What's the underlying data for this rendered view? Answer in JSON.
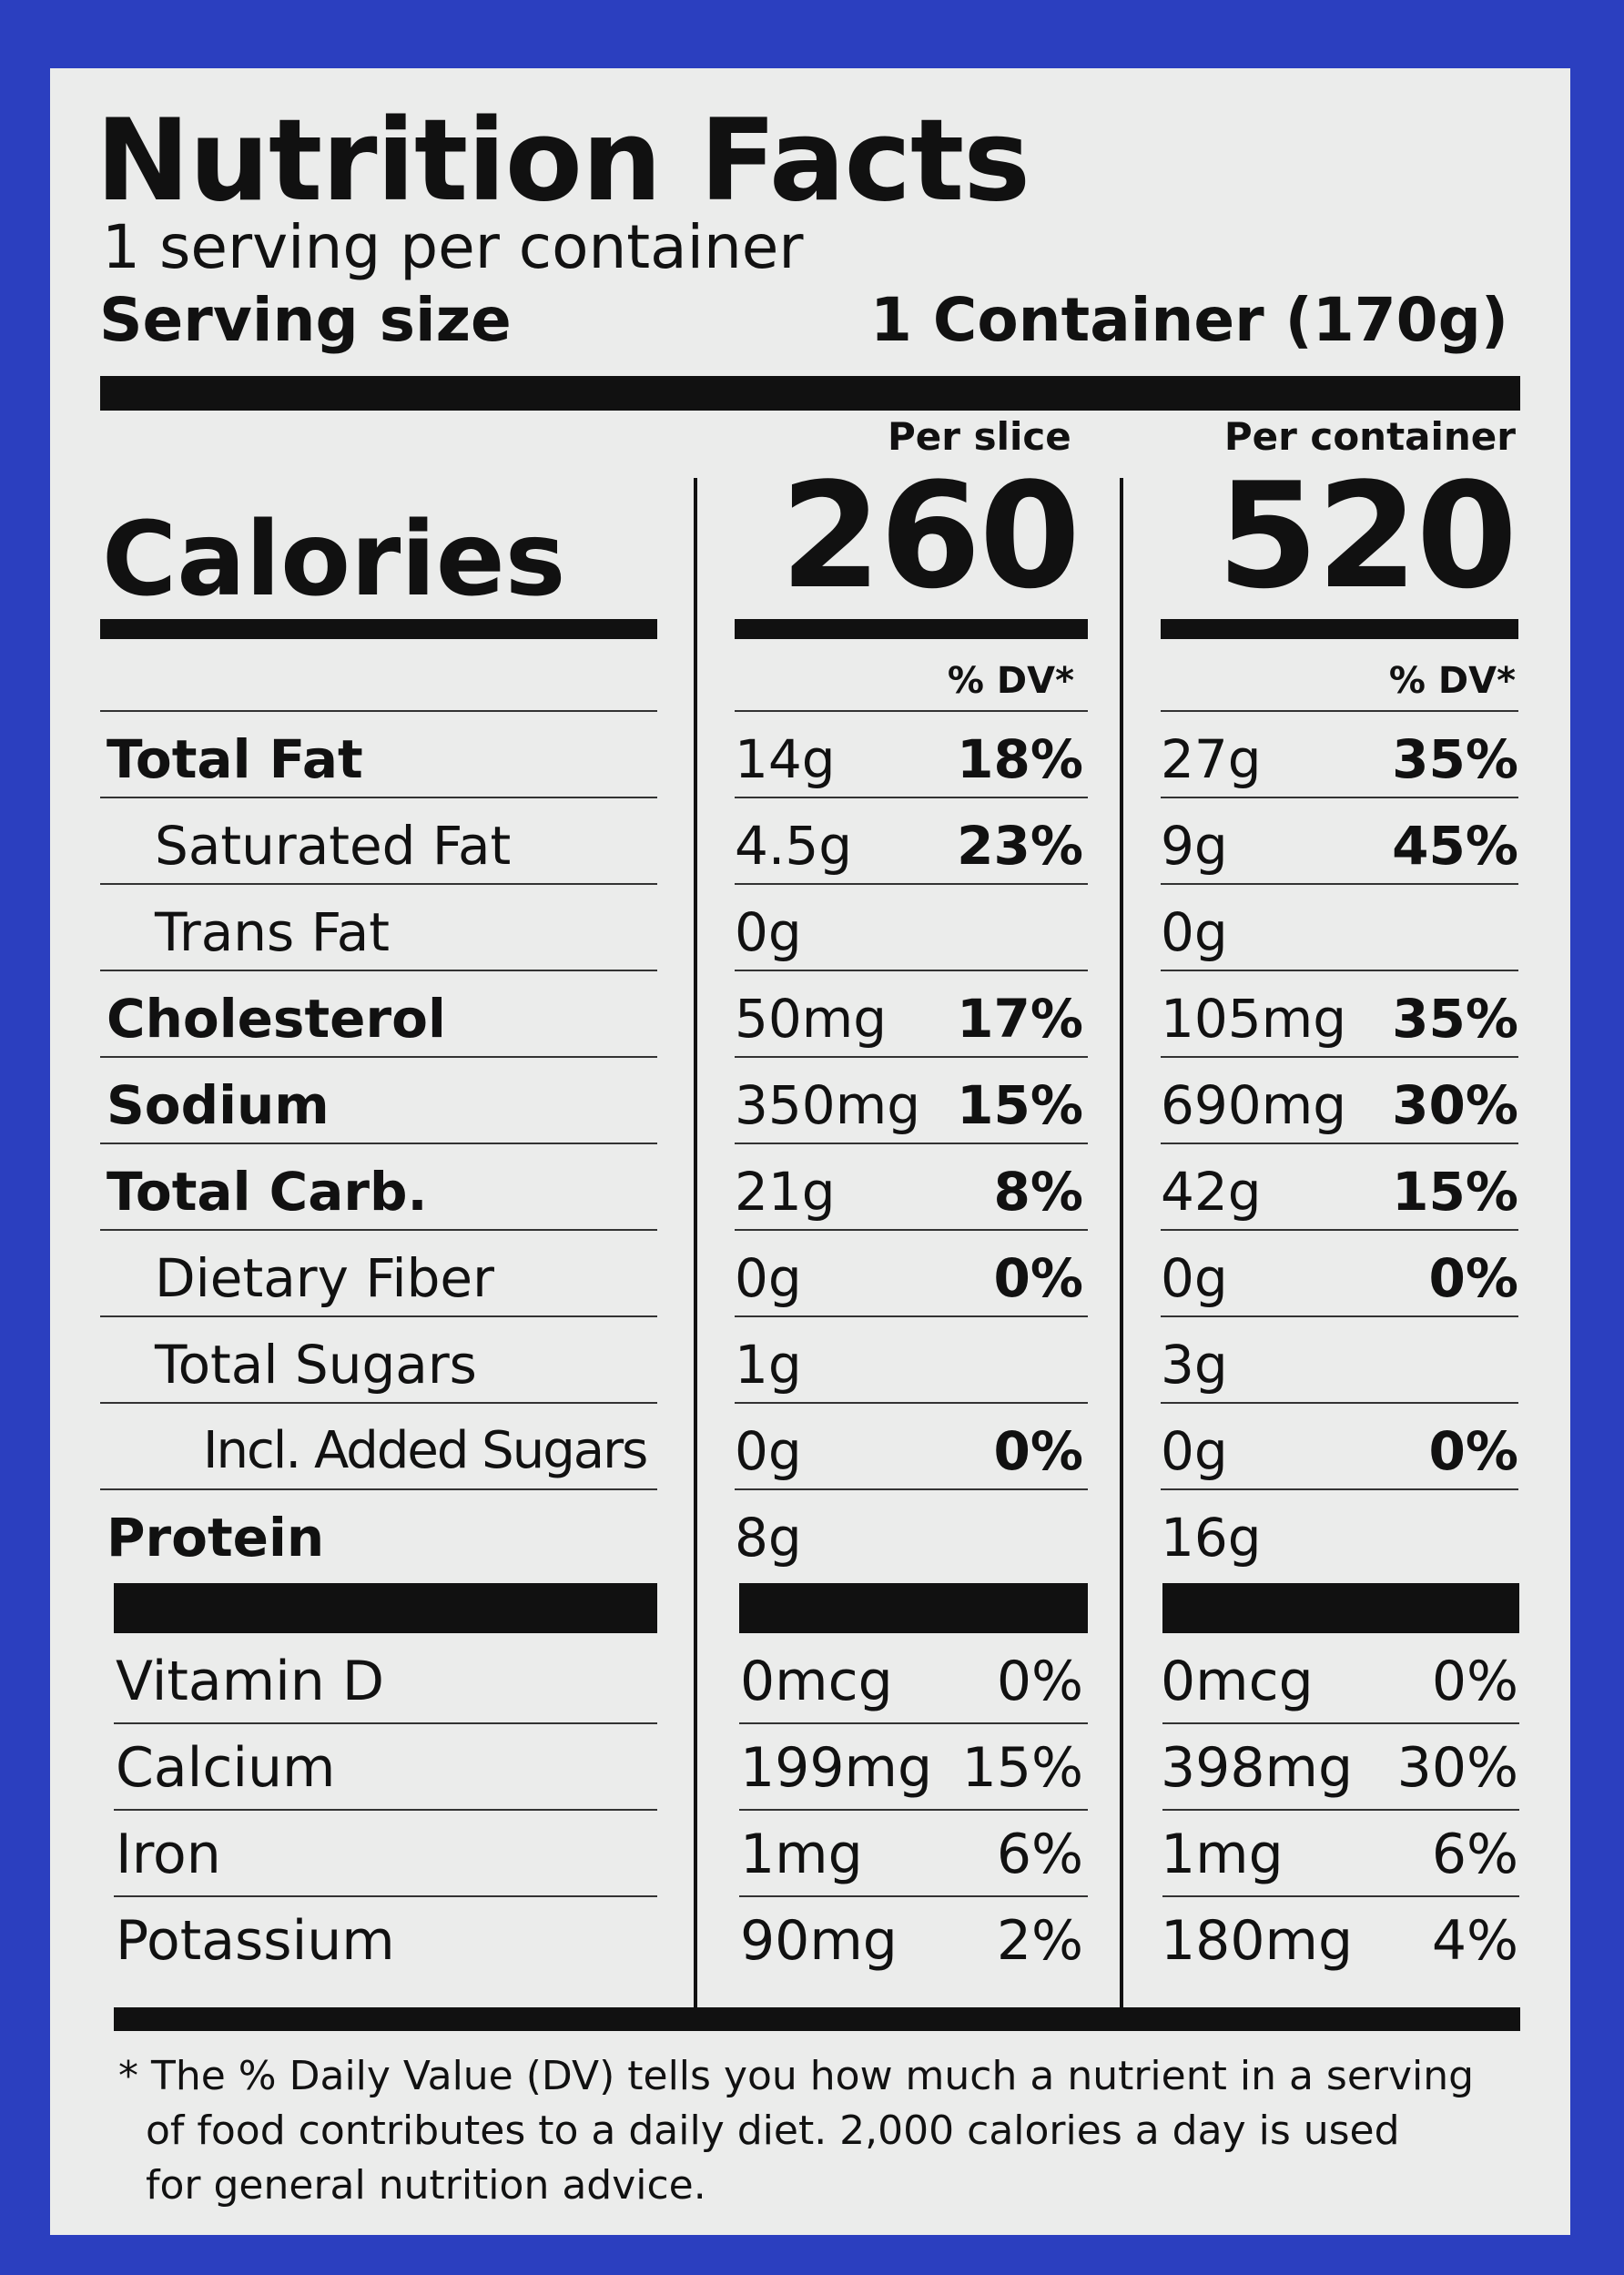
{
  "title": "Nutrition Facts",
  "servings_per_container": "1 serving per container",
  "serving_size": {
    "label": "Serving size",
    "value": "1 Container (170g)"
  },
  "columns": {
    "per_slice": "Per slice",
    "per_container": "Per container"
  },
  "calories": {
    "label": "Calories",
    "per_slice": "260",
    "per_container": "520"
  },
  "dv_header": "% DV*",
  "nutrients": [
    {
      "label": "Total Fat",
      "slice_amt": "14g",
      "slice_dv": "18%",
      "cont_amt": "27g",
      "cont_dv": "35%"
    },
    {
      "label": "Saturated Fat",
      "slice_amt": "4.5g",
      "slice_dv": "23%",
      "cont_amt": "9g",
      "cont_dv": "45%"
    },
    {
      "label": "Trans Fat",
      "slice_amt": "0g",
      "slice_dv": "",
      "cont_amt": "0g",
      "cont_dv": ""
    },
    {
      "label": "Cholesterol",
      "slice_amt": "50mg",
      "slice_dv": "17%",
      "cont_amt": "105mg",
      "cont_dv": "35%"
    },
    {
      "label": "Sodium",
      "slice_amt": "350mg",
      "slice_dv": "15%",
      "cont_amt": "690mg",
      "cont_dv": "30%"
    },
    {
      "label": "Total Carb.",
      "slice_amt": "21g",
      "slice_dv": "8%",
      "cont_amt": "42g",
      "cont_dv": "15%"
    },
    {
      "label": "Dietary Fiber",
      "slice_amt": "0g",
      "slice_dv": "0%",
      "cont_amt": "0g",
      "cont_dv": "0%"
    },
    {
      "label": "Total Sugars",
      "slice_amt": "1g",
      "slice_dv": "",
      "cont_amt": "3g",
      "cont_dv": ""
    },
    {
      "label": "Incl. Added Sugars",
      "slice_amt": "0g",
      "slice_dv": "0%",
      "cont_amt": "0g",
      "cont_dv": "0%"
    },
    {
      "label": "Protein",
      "slice_amt": "8g",
      "slice_dv": "",
      "cont_amt": "16g",
      "cont_dv": ""
    }
  ],
  "vitamins": [
    {
      "label": "Vitamin D",
      "slice_amt": "0mcg",
      "slice_dv": "0%",
      "cont_amt": "0mcg",
      "cont_dv": "0%"
    },
    {
      "label": "Calcium",
      "slice_amt": "199mg",
      "slice_dv": "15%",
      "cont_amt": "398mg",
      "cont_dv": "30%"
    },
    {
      "label": "Iron",
      "slice_amt": "1mg",
      "slice_dv": "6%",
      "cont_amt": "1mg",
      "cont_dv": "6%"
    },
    {
      "label": "Potassium",
      "slice_amt": "90mg",
      "slice_dv": "2%",
      "cont_amt": "180mg",
      "cont_dv": "4%"
    }
  ],
  "footnote": {
    "line1": "* The % Daily Value (DV) tells you how much a nutrient in a serving",
    "line2": "of food contributes to a daily diet. 2,000 calories a day is used",
    "line3": "for general nutrition advice."
  }
}
